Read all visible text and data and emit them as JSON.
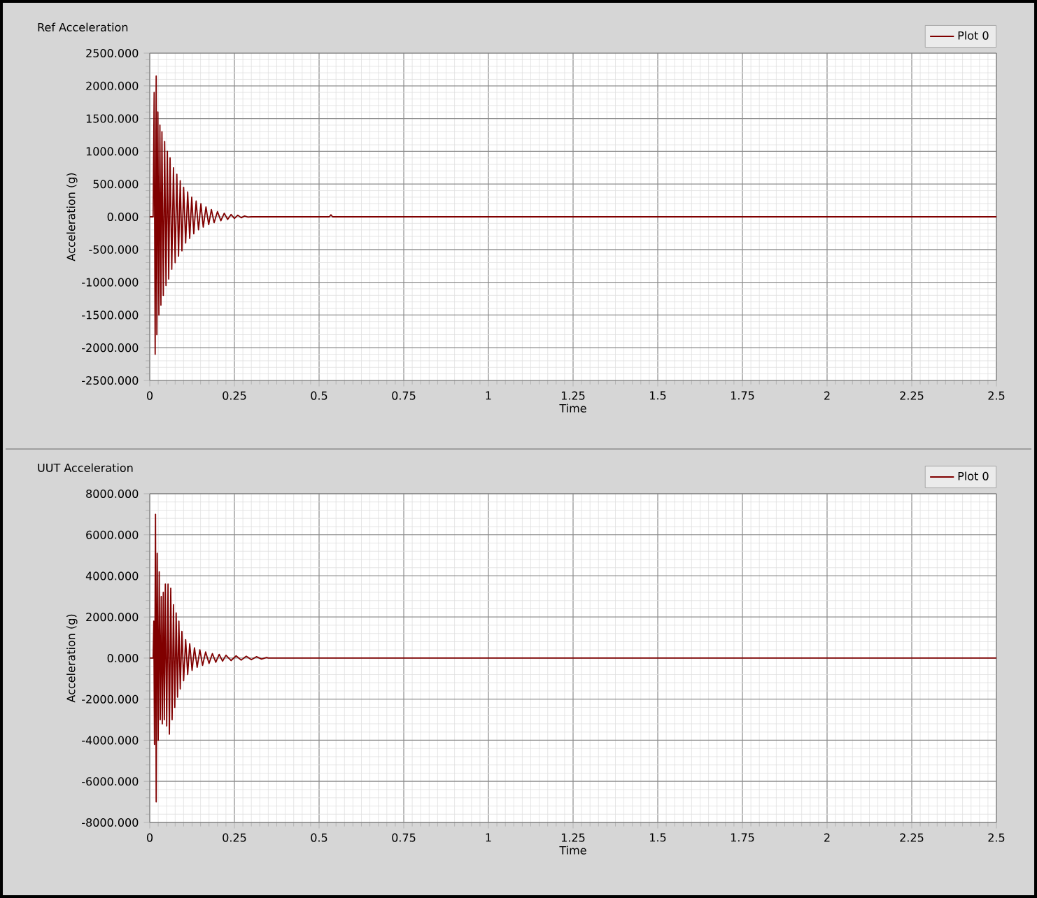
{
  "chart_data": [
    {
      "type": "line",
      "title": "Ref Acceleration",
      "xlabel": "Time",
      "ylabel": "Acceleration (g)",
      "xlim": [
        0,
        2.5
      ],
      "ylim": [
        -2500,
        2500
      ],
      "xticks": [
        0,
        0.25,
        0.5,
        0.75,
        1,
        1.25,
        1.5,
        1.75,
        2,
        2.25,
        2.5
      ],
      "yticks": [
        {
          "value": -2500,
          "label": "-2500.000"
        },
        {
          "value": -2000,
          "label": "-2000.000"
        },
        {
          "value": -1500,
          "label": "-1500.000"
        },
        {
          "value": -1000,
          "label": "-1000.000"
        },
        {
          "value": -500,
          "label": "-500.000"
        },
        {
          "value": 0,
          "label": "0.000"
        },
        {
          "value": 500,
          "label": "500.000"
        },
        {
          "value": 1000,
          "label": "1000.000"
        },
        {
          "value": 1500,
          "label": "1500.000"
        },
        {
          "value": 2000,
          "label": "2000.000"
        },
        {
          "value": 2500,
          "label": "2500.000"
        }
      ],
      "grid": true,
      "legend": "top right",
      "x": [
        0,
        0.01,
        0.013,
        0.016,
        0.019,
        0.021,
        0.024,
        0.027,
        0.03,
        0.033,
        0.036,
        0.04,
        0.044,
        0.048,
        0.052,
        0.056,
        0.06,
        0.065,
        0.07,
        0.075,
        0.08,
        0.085,
        0.09,
        0.095,
        0.1,
        0.106,
        0.112,
        0.118,
        0.124,
        0.13,
        0.137,
        0.144,
        0.151,
        0.158,
        0.166,
        0.174,
        0.182,
        0.19,
        0.2,
        0.21,
        0.22,
        0.23,
        0.24,
        0.25,
        0.26,
        0.27,
        0.28,
        0.29,
        0.3,
        0.53,
        0.535,
        0.54,
        2.5
      ],
      "series": [
        {
          "name": "Plot 0",
          "color": "#800000",
          "values": [
            0,
            0,
            1900,
            -2100,
            2150,
            -1800,
            1600,
            -1500,
            1400,
            -1350,
            1300,
            -1200,
            1150,
            -1050,
            1000,
            -950,
            900,
            -800,
            750,
            -700,
            650,
            -600,
            550,
            -520,
            450,
            -400,
            380,
            -330,
            300,
            -260,
            240,
            -200,
            200,
            -160,
            150,
            -120,
            110,
            -90,
            80,
            -60,
            55,
            -40,
            35,
            -25,
            25,
            -15,
            12,
            -5,
            0,
            0,
            30,
            0,
            0
          ]
        }
      ]
    },
    {
      "type": "line",
      "title": "UUT Acceleration",
      "xlabel": "Time",
      "ylabel": "Acceleration (g)",
      "xlim": [
        0,
        2.5
      ],
      "ylim": [
        -8000,
        8000
      ],
      "xticks": [
        0,
        0.25,
        0.5,
        0.75,
        1,
        1.25,
        1.5,
        1.75,
        2,
        2.25,
        2.5
      ],
      "yticks": [
        {
          "value": -8000,
          "label": "-8000.000"
        },
        {
          "value": -6000,
          "label": "-6000.000"
        },
        {
          "value": -4000,
          "label": "-4000.000"
        },
        {
          "value": -2000,
          "label": "-2000.000"
        },
        {
          "value": 0,
          "label": "0.000"
        },
        {
          "value": 2000,
          "label": "2000.000"
        },
        {
          "value": 4000,
          "label": "4000.000"
        },
        {
          "value": 6000,
          "label": "6000.000"
        },
        {
          "value": 8000,
          "label": "8000.000"
        }
      ],
      "grid": true,
      "legend": "top right",
      "x": [
        0,
        0.01,
        0.012,
        0.014,
        0.017,
        0.019,
        0.022,
        0.025,
        0.028,
        0.031,
        0.034,
        0.037,
        0.04,
        0.043,
        0.046,
        0.05,
        0.054,
        0.058,
        0.062,
        0.066,
        0.07,
        0.074,
        0.078,
        0.082,
        0.086,
        0.09,
        0.095,
        0.1,
        0.106,
        0.112,
        0.118,
        0.125,
        0.132,
        0.14,
        0.148,
        0.156,
        0.165,
        0.175,
        0.185,
        0.195,
        0.205,
        0.215,
        0.225,
        0.24,
        0.255,
        0.27,
        0.285,
        0.3,
        0.315,
        0.33,
        0.345,
        0.35,
        2.5
      ],
      "series": [
        {
          "name": "Plot 0",
          "color": "#800000",
          "values": [
            0,
            0,
            1800,
            -4200,
            7000,
            -7000,
            5100,
            -4000,
            4200,
            -3000,
            3000,
            -3200,
            3200,
            -3000,
            3600,
            -3300,
            3600,
            -3700,
            3400,
            -3000,
            2600,
            -2400,
            2200,
            -1900,
            1800,
            -1500,
            1300,
            -1100,
            900,
            -800,
            700,
            -600,
            500,
            -450,
            400,
            -350,
            300,
            -260,
            220,
            -200,
            180,
            -150,
            140,
            -120,
            110,
            -100,
            90,
            -80,
            70,
            -50,
            30,
            0,
            0
          ]
        }
      ]
    }
  ]
}
